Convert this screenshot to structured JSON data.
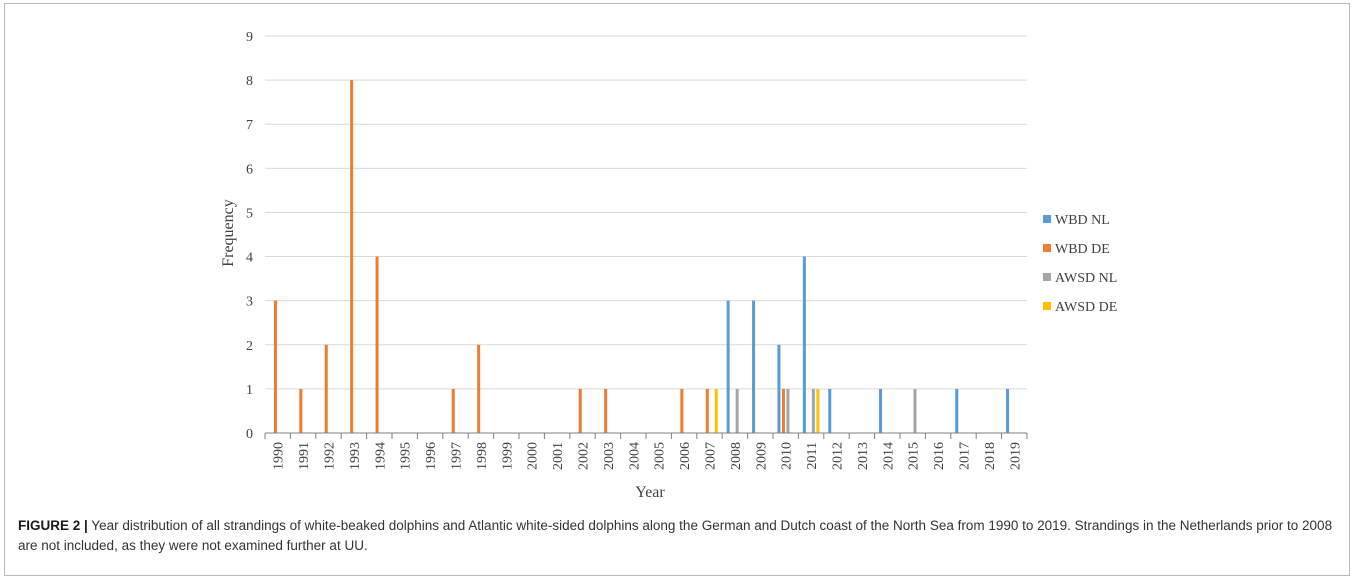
{
  "figure": {
    "label": "FIGURE 2 |",
    "caption": " Year distribution of all strandings of white-beaked dolphins and Atlantic white-sided dolphins along the German and Dutch coast of the North Sea from 1990 to 2019. Strandings in the Netherlands prior to 2008 are not included, as they were not examined further at UU."
  },
  "chart_data": {
    "type": "bar",
    "xlabel": "Year",
    "ylabel": "Frequency",
    "ylim": [
      0,
      9
    ],
    "yticks": [
      0,
      1,
      2,
      3,
      4,
      5,
      6,
      7,
      8,
      9
    ],
    "grid": true,
    "legend_position": "right",
    "categories": [
      "1990",
      "1991",
      "1992",
      "1993",
      "1994",
      "1995",
      "1996",
      "1997",
      "1998",
      "1999",
      "2000",
      "2001",
      "2002",
      "2003",
      "2004",
      "2005",
      "2006",
      "2007",
      "2008",
      "2009",
      "2010",
      "2011",
      "2012",
      "2013",
      "2014",
      "2015",
      "2016",
      "2017",
      "2018",
      "2019"
    ],
    "series": [
      {
        "name": "WBD NL",
        "color": "#5b9bd5",
        "values": [
          0,
          0,
          0,
          0,
          0,
          0,
          0,
          0,
          0,
          0,
          0,
          0,
          0,
          0,
          0,
          0,
          0,
          0,
          3,
          3,
          2,
          4,
          1,
          0,
          1,
          0,
          0,
          1,
          0,
          1
        ]
      },
      {
        "name": "WBD DE",
        "color": "#ed7d31",
        "values": [
          3,
          1,
          2,
          8,
          4,
          0,
          0,
          1,
          2,
          0,
          0,
          0,
          1,
          1,
          0,
          0,
          1,
          1,
          0,
          0,
          1,
          0,
          0,
          0,
          0,
          0,
          0,
          0,
          0,
          0
        ]
      },
      {
        "name": "AWSD NL",
        "color": "#a5a5a5",
        "values": [
          0,
          0,
          0,
          0,
          0,
          0,
          0,
          0,
          0,
          0,
          0,
          0,
          0,
          0,
          0,
          0,
          0,
          0,
          1,
          0,
          1,
          1,
          0,
          0,
          0,
          1,
          0,
          0,
          0,
          0
        ]
      },
      {
        "name": "AWSD DE",
        "color": "#ffc000",
        "values": [
          0,
          0,
          0,
          0,
          0,
          0,
          0,
          0,
          0,
          0,
          0,
          0,
          0,
          0,
          0,
          0,
          0,
          1,
          0,
          0,
          0,
          1,
          0,
          0,
          0,
          0,
          0,
          0,
          0,
          0
        ]
      }
    ]
  }
}
